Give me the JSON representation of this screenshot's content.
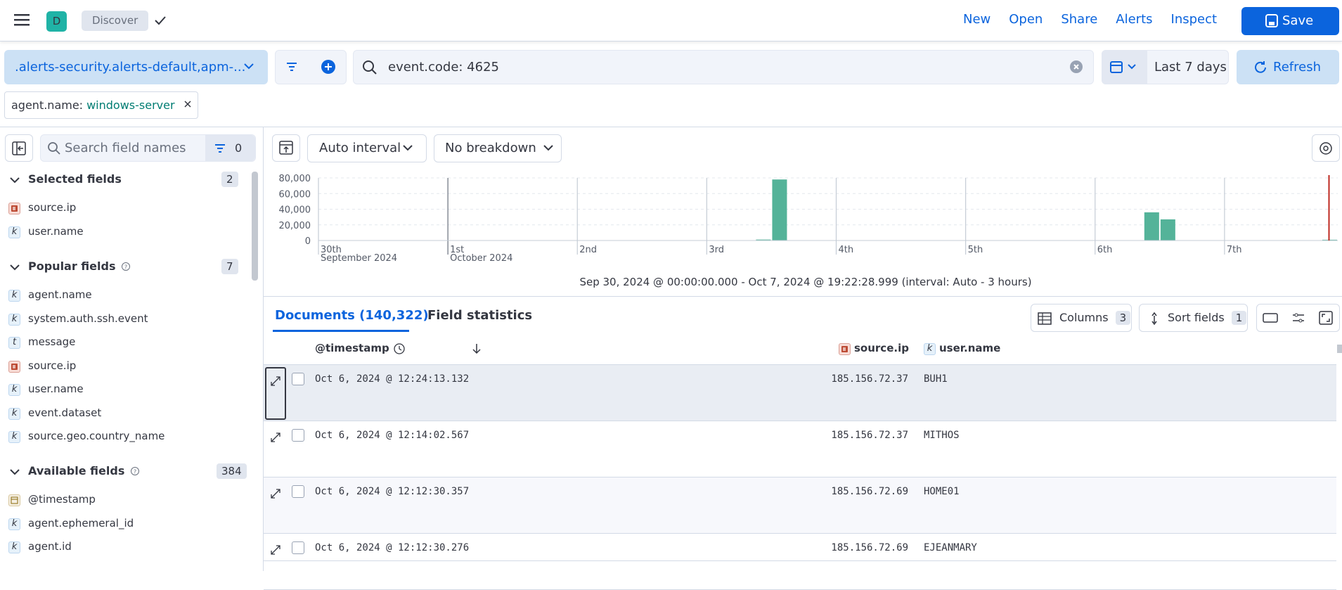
{
  "header": {
    "app_badge": "D",
    "breadcrumb": "Discover",
    "nav": [
      "New",
      "Open",
      "Share",
      "Alerts",
      "Inspect"
    ],
    "save": "Save"
  },
  "search_bar": {
    "data_view": ".alerts-security.alerts-default,apm-...",
    "query": "event.code: 4625",
    "date_range": "Last 7 days",
    "refresh": "Refresh"
  },
  "filters": [
    {
      "field": "agent.name:",
      "value": "windows-server"
    }
  ],
  "sidebar": {
    "search_placeholder": "Search field names",
    "filter_count": 0,
    "sections": [
      {
        "title": "Selected fields",
        "count": 2,
        "fields": [
          {
            "type": "ip",
            "name": "source.ip"
          },
          {
            "type": "k",
            "name": "user.name"
          }
        ]
      },
      {
        "title": "Popular fields",
        "count": 7,
        "fields": [
          {
            "type": "k",
            "name": "agent.name"
          },
          {
            "type": "k",
            "name": "system.auth.ssh.event"
          },
          {
            "type": "t",
            "name": "message"
          },
          {
            "type": "ip",
            "name": "source.ip"
          },
          {
            "type": "k",
            "name": "user.name"
          },
          {
            "type": "k",
            "name": "event.dataset"
          },
          {
            "type": "k",
            "name": "source.geo.country_name"
          }
        ]
      },
      {
        "title": "Available fields",
        "count": 384,
        "fields": [
          {
            "type": "date",
            "name": "@timestamp"
          },
          {
            "type": "k",
            "name": "agent.ephemeral_id"
          },
          {
            "type": "k",
            "name": "agent.id"
          }
        ]
      }
    ]
  },
  "toolbar": {
    "interval": "Auto interval",
    "breakdown": "No breakdown"
  },
  "chart_data": {
    "type": "bar",
    "x": [
      81,
      84,
      153,
      156,
      186
    ],
    "values": [
      1200,
      78000,
      36000,
      27000,
      1000
    ],
    "bar_width": 3,
    "color": "#54b399",
    "xlim": [
      0,
      189
    ],
    "xticks": [
      {
        "value": 0,
        "label": "30th",
        "sublabel": "September 2024"
      },
      {
        "value": 24,
        "label": "1st",
        "sublabel": "October 2024"
      },
      {
        "value": 48,
        "label": "2nd"
      },
      {
        "value": 72,
        "label": "3rd"
      },
      {
        "value": 96,
        "label": "4th"
      },
      {
        "value": 120,
        "label": "5th"
      },
      {
        "value": 144,
        "label": "6th"
      },
      {
        "value": 168,
        "label": "7th"
      }
    ],
    "ylim": [
      0,
      80000
    ],
    "yticks": [
      0,
      {
        "value": 20000,
        "label": "20,000"
      },
      {
        "value": 40000,
        "label": "40,000"
      },
      {
        "value": 60000,
        "label": "60,000"
      },
      {
        "value": 80000,
        "label": "80,000"
      }
    ],
    "grid": true,
    "now": 187.37,
    "now_color": "#bd271e",
    "caption": "Sep 30, 2024 @ 00:00:00.000 - Oct 7, 2024 @ 19:22:28.999 (interval: Auto - 3 hours)"
  },
  "documents": {
    "tabs": [
      "Documents (140,322)",
      "Field statistics"
    ],
    "columns_button": "Columns",
    "columns_count": 3,
    "sort_button": "Sort fields",
    "sort_count": 1,
    "headers": [
      {
        "name": "@timestamp"
      },
      {
        "name": "source.ip",
        "type": "ip"
      },
      {
        "name": "user.name",
        "type": "k"
      }
    ],
    "rows": [
      [
        "Oct 6, 2024 @ 12:24:13.132",
        "185.156.72.37",
        "BUH1"
      ],
      [
        "Oct 6, 2024 @ 12:14:02.567",
        "185.156.72.37",
        "MITHOS"
      ],
      [
        "Oct 6, 2024 @ 12:12:30.357",
        "185.156.72.69",
        "HOME01"
      ],
      [
        "Oct 6, 2024 @ 12:12:30.276",
        "185.156.72.69",
        "EJEANMARY"
      ]
    ]
  }
}
